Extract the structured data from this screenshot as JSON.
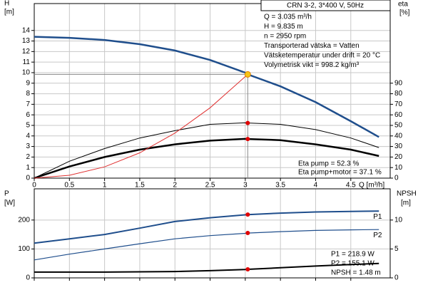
{
  "chart_data": [
    {
      "type": "line",
      "ylabel": "H",
      "yunit": "[m]",
      "y2label": "eta",
      "y2unit": "[%]",
      "xlabel": "Q [m³/h]",
      "title": "CRN 3-2, 3*400 V, 50Hz",
      "annotations": [
        "Q = 3.035 m³/h",
        "H = 9.835 m",
        "n = 2950 rpm",
        "Transporterad vätska = Vatten",
        "Vätsketemperatur under drift = 20 °C",
        "Volymetrisk vikt = 998.2 kg/m³"
      ],
      "notes": [
        "Eta pump = 52.3 %",
        "Eta pump+motor = 37.1 %"
      ],
      "operating_q": 3.035,
      "xlim": [
        0,
        5.06
      ],
      "xticks": [
        0,
        0.5,
        1,
        1.5,
        2,
        2.5,
        3,
        3.5,
        4,
        4.5
      ],
      "ylim": [
        0,
        16.55
      ],
      "yticks": [
        0,
        1,
        2,
        3,
        4,
        5,
        6,
        7,
        8,
        9,
        10,
        11,
        12,
        13,
        14
      ],
      "y2lim": [
        0,
        165.5
      ],
      "y2ticks": [
        0,
        10,
        20,
        30,
        40,
        50,
        60,
        70,
        80,
        90
      ],
      "grid": true,
      "series": [
        {
          "color": "#1f4e8c",
          "width": 2.5,
          "marker_color": "#f5c518",
          "x": [
            0,
            0.5,
            1,
            1.5,
            2,
            2.5,
            3,
            3.035,
            3.5,
            4,
            4.5,
            4.9
          ],
          "values": [
            13.4,
            13.3,
            13.1,
            12.7,
            12.1,
            11.2,
            10.0,
            9.835,
            8.7,
            7.2,
            5.4,
            3.9
          ]
        },
        {
          "color": "#000000",
          "width": 1,
          "axis": "y2",
          "marker_color": "#e00000",
          "x": [
            0,
            0.5,
            1,
            1.5,
            2,
            2.5,
            3,
            3.035,
            3.5,
            4,
            4.5,
            4.9
          ],
          "values": [
            0,
            16,
            28,
            38,
            45,
            51,
            52.4,
            52.3,
            51,
            46,
            38,
            29
          ]
        },
        {
          "color": "#000000",
          "width": 2.5,
          "axis": "y2",
          "marker_color": "#e00000",
          "x": [
            0,
            0.5,
            1,
            1.5,
            2,
            2.5,
            3,
            3.035,
            3.5,
            4,
            4.5,
            4.9
          ],
          "values": [
            0,
            11,
            20,
            27,
            32,
            35.5,
            37.2,
            37.1,
            36,
            32,
            27,
            21
          ]
        },
        {
          "color": "#e03030",
          "width": 1,
          "x": [
            0,
            0.5,
            1,
            1.5,
            2,
            2.5,
            3.035
          ],
          "values": [
            0,
            0.27,
            1.07,
            2.4,
            4.27,
            6.67,
            9.835
          ]
        }
      ]
    },
    {
      "type": "line",
      "ylabel": "P",
      "yunit": "[W]",
      "y2label": "NPSH",
      "y2unit": "[m]",
      "notes": [
        "P1 = 218.9 W",
        "P2 = 155.1 W",
        "NPSH = 1.48 m"
      ],
      "operating_q": 3.035,
      "xlim": [
        0,
        5.06
      ],
      "xticks": [
        0,
        0.5,
        1,
        1.5,
        2,
        2.5,
        3,
        3.5,
        4,
        4.5
      ],
      "ylim": [
        0,
        308
      ],
      "yticks": [
        0,
        100,
        200
      ],
      "y2lim": [
        0,
        15.4
      ],
      "y2ticks": [
        0,
        5,
        10
      ],
      "grid": true,
      "series": [
        {
          "name": "P1",
          "color": "#1f4e8c",
          "width": 2,
          "marker_color": "#e00000",
          "x": [
            0,
            0.5,
            1,
            1.5,
            2,
            2.5,
            3,
            3.035,
            3.5,
            4,
            4.5,
            4.9
          ],
          "values": [
            120,
            135,
            150,
            172,
            195,
            208,
            218,
            218.9,
            224,
            228,
            230,
            231
          ]
        },
        {
          "name": "P2",
          "color": "#1f4e8c",
          "width": 1.2,
          "marker_color": "#e00000",
          "x": [
            0,
            0.5,
            1,
            1.5,
            2,
            2.5,
            3,
            3.035,
            3.5,
            4,
            4.5,
            4.9
          ],
          "values": [
            62,
            82,
            100,
            118,
            135,
            146,
            154,
            155.1,
            160,
            164,
            166,
            167
          ]
        },
        {
          "color": "#000000",
          "width": 2,
          "axis": "y2",
          "marker_color": "#e00000",
          "x": [
            0,
            0.5,
            1,
            1.5,
            2,
            2.5,
            3,
            3.035,
            3.5,
            4,
            4.5,
            4.9
          ],
          "values": [
            1.0,
            1.0,
            1.0,
            1.05,
            1.1,
            1.25,
            1.45,
            1.48,
            1.75,
            2.05,
            2.3,
            2.5
          ]
        }
      ]
    }
  ]
}
